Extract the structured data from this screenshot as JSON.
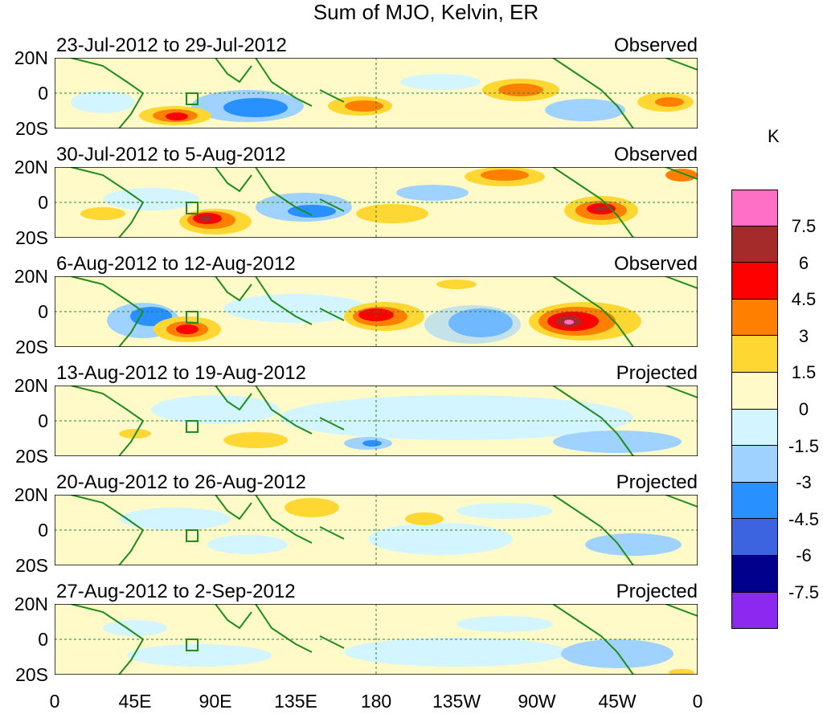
{
  "title": "Sum of MJO, Kelvin, ER",
  "colorbar": {
    "unit": "K",
    "levels": [
      {
        "color": "#ff6ec7",
        "value": "7.5"
      },
      {
        "color": "#a52a2a",
        "value": "6"
      },
      {
        "color": "#ff0000",
        "value": "4.5"
      },
      {
        "color": "#ff7f00",
        "value": "3"
      },
      {
        "color": "#ffd732",
        "value": "1.5"
      },
      {
        "color": "#fffac8",
        "value": "0"
      },
      {
        "color": "#d2f5ff",
        "value": "-1.5"
      },
      {
        "color": "#a0d2ff",
        "value": "-3"
      },
      {
        "color": "#2891ff",
        "value": "-4.5"
      },
      {
        "color": "#3c64e1",
        "value": "-6"
      },
      {
        "color": "#00008c",
        "value": "-7.5"
      },
      {
        "color": "#8c28f0",
        "value": null
      }
    ]
  },
  "lat_labels": [
    "20N",
    "0",
    "20S"
  ],
  "lon_labels": [
    "0",
    "45E",
    "90E",
    "135E",
    "180",
    "135W",
    "90W",
    "45W",
    "0"
  ],
  "panels": [
    {
      "dates": "23-Jul-2012 to 29-Jul-2012",
      "status": "Observed"
    },
    {
      "dates": "30-Jul-2012 to 5-Aug-2012",
      "status": "Observed"
    },
    {
      "dates": "6-Aug-2012 to 12-Aug-2012",
      "status": "Observed"
    },
    {
      "dates": "13-Aug-2012 to 19-Aug-2012",
      "status": "Projected"
    },
    {
      "dates": "20-Aug-2012 to 26-Aug-2012",
      "status": "Projected"
    },
    {
      "dates": "27-Aug-2012 to 2-Sep-2012",
      "status": "Projected"
    }
  ]
}
